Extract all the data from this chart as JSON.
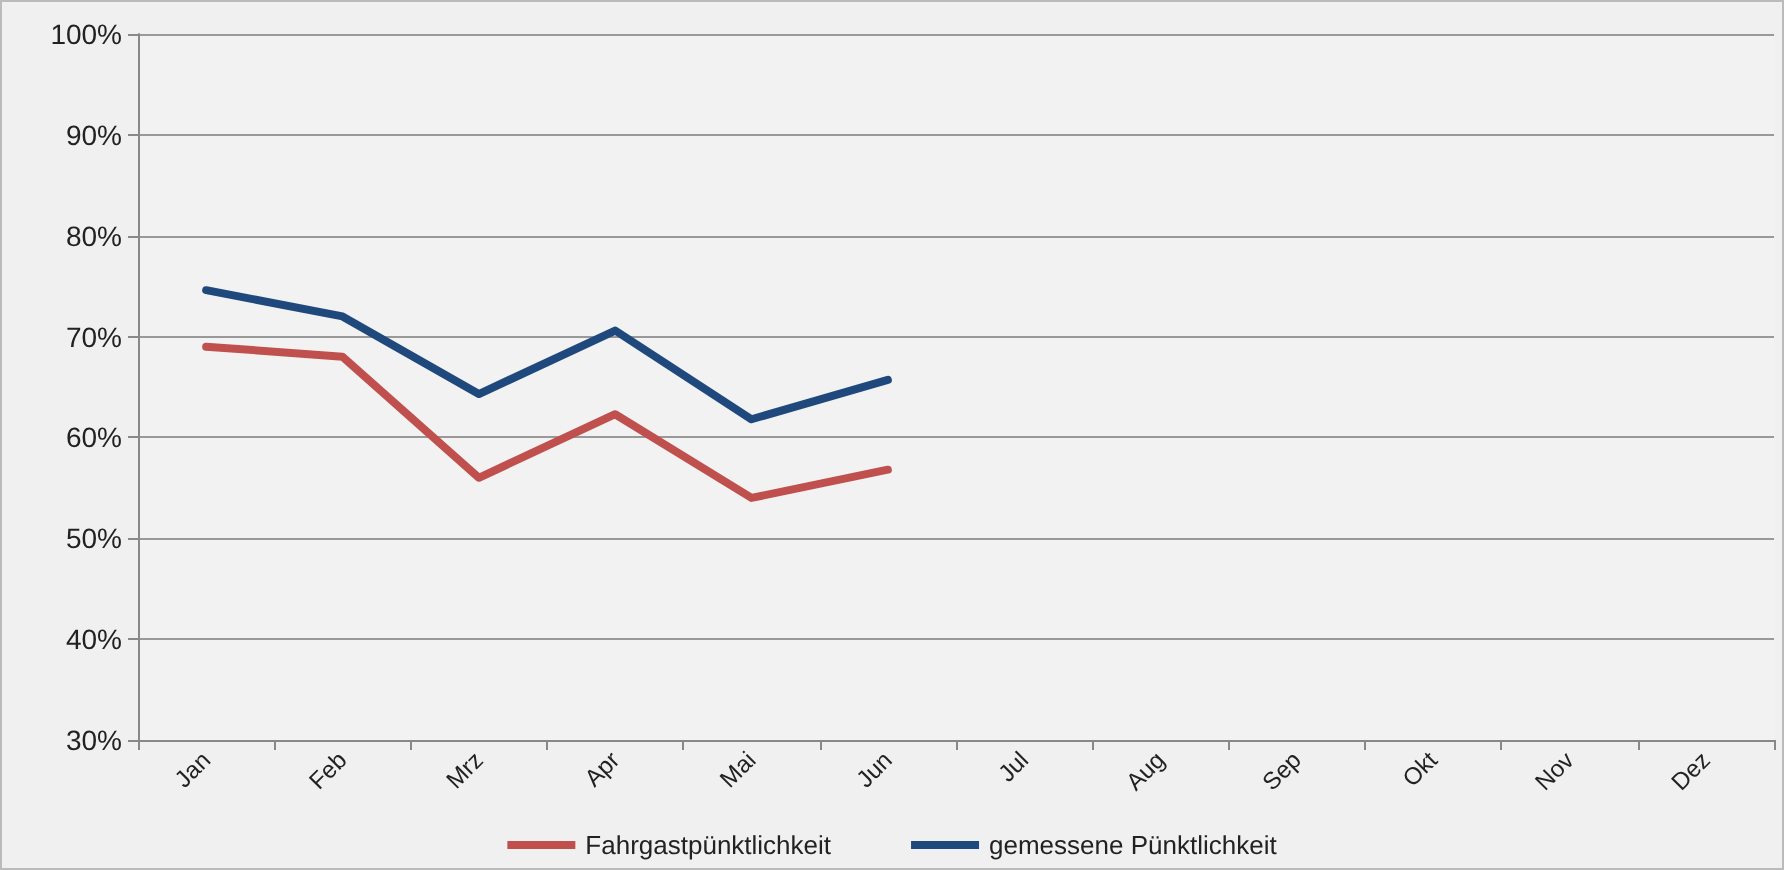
{
  "chart_data": {
    "type": "line",
    "categories": [
      "Jan",
      "Feb",
      "Mrz",
      "Apr",
      "Mai",
      "Jun",
      "Jul",
      "Aug",
      "Sep",
      "Okt",
      "Nov",
      "Dez"
    ],
    "series": [
      {
        "name": "Fahrgastpünktlichkeit",
        "color": "#c0504d",
        "values": [
          69,
          68,
          56,
          62.3,
          54,
          56.8,
          null,
          null,
          null,
          null,
          null,
          null
        ]
      },
      {
        "name": "gemessene Pünktlichkeit",
        "color": "#1f497d",
        "values": [
          74.6,
          72,
          64.3,
          70.6,
          61.8,
          65.7,
          null,
          null,
          null,
          null,
          null,
          null
        ]
      }
    ],
    "ylim": [
      30,
      100
    ],
    "yticks": [
      {
        "value": 30,
        "label": "30%"
      },
      {
        "value": 40,
        "label": "40%"
      },
      {
        "value": 50,
        "label": "50%"
      },
      {
        "value": 60,
        "label": "60%"
      },
      {
        "value": 70,
        "label": "70%"
      },
      {
        "value": 80,
        "label": "80%"
      },
      {
        "value": 90,
        "label": "90%"
      },
      {
        "value": 100,
        "label": "100%"
      }
    ],
    "grid": "y",
    "legend": "bottom",
    "marker": "none",
    "line_style": "solid"
  }
}
